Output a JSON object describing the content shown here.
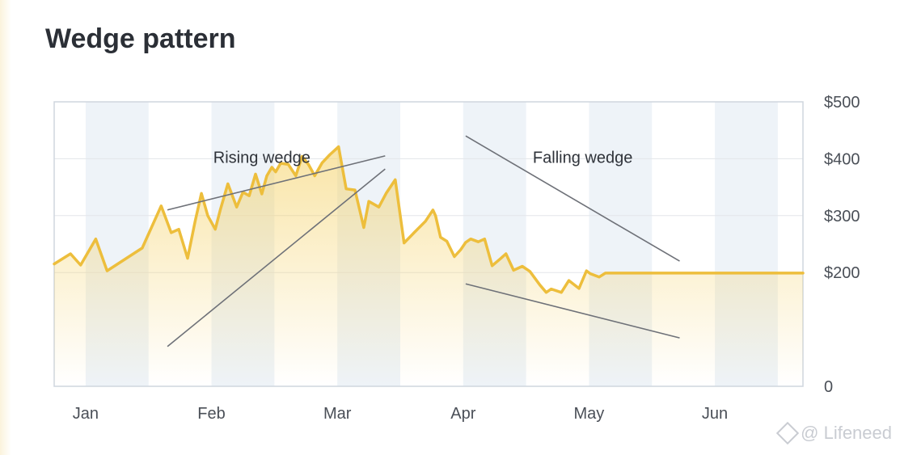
{
  "title": "Wedge pattern",
  "watermark": "@ Lifeneed",
  "colors": {
    "line": "#edbe3c",
    "fill_top": "#f4cf5e",
    "band": "#eef3f8",
    "trend": "#6e7178",
    "grid": "#e3e6ea",
    "axis_text": "#4a4f57",
    "border": "#cfd6de"
  },
  "chart_data": {
    "type": "area",
    "title": "Wedge pattern",
    "xlabel": "",
    "ylabel": "",
    "x_ticks": [
      "Jan",
      "Feb",
      "Mar",
      "Apr",
      "May",
      "Jun"
    ],
    "y_ticks": [
      "0",
      "$200",
      "$300",
      "$400",
      "$500"
    ],
    "y_tick_values": [
      0,
      200,
      300,
      400,
      500
    ],
    "ylim": [
      0,
      500
    ],
    "xlim": [
      0,
      5.95
    ],
    "grid": true,
    "legend": "none",
    "series": [
      {
        "values_x": [
          0.0,
          0.13,
          0.21,
          0.33,
          0.42,
          0.7,
          0.85,
          0.93,
          0.99,
          1.06,
          1.12,
          1.17,
          1.22,
          1.28,
          1.32,
          1.38,
          1.45,
          1.5,
          1.55,
          1.6,
          1.65,
          1.69,
          1.73,
          1.76,
          1.8,
          1.86,
          1.92,
          1.97,
          2.02,
          2.07,
          2.13,
          2.19,
          2.26,
          2.32,
          2.39,
          2.46,
          2.5,
          2.58,
          2.64,
          2.71,
          2.78,
          2.86,
          2.95,
          3.01,
          3.03,
          3.07,
          3.12,
          3.18,
          3.23,
          3.27,
          3.31,
          3.37,
          3.42,
          3.48,
          3.55,
          3.59,
          3.65,
          3.72,
          3.78,
          3.86,
          3.91,
          3.95,
          4.03,
          4.09,
          4.17,
          4.23,
          4.26,
          4.33,
          4.38,
          4.43,
          4.48,
          4.54,
          4.59,
          4.67,
          4.71,
          4.75,
          4.8,
          4.87,
          5.03,
          5.15,
          5.27,
          5.43,
          5.53,
          5.62,
          5.7,
          5.78,
          5.83,
          5.9,
          5.95
        ],
        "values": [
          215,
          233,
          213,
          259,
          203,
          243,
          317,
          270,
          276,
          225,
          290,
          339,
          300,
          276,
          310,
          356,
          315,
          341,
          335,
          373,
          338,
          370,
          385,
          377,
          392,
          390,
          370,
          404,
          390,
          370,
          393,
          407,
          421,
          347,
          345,
          279,
          325,
          315,
          340,
          363,
          252,
          270,
          290,
          310,
          300,
          262,
          255,
          228,
          240,
          253,
          259,
          254,
          259,
          212,
          225,
          233,
          204,
          211,
          202,
          178,
          165,
          171,
          165,
          186,
          172,
          203,
          198,
          192,
          199,
          199,
          199,
          199,
          199,
          199,
          199,
          199,
          199,
          199,
          199,
          199,
          199,
          199,
          199,
          199,
          199,
          199,
          199,
          199,
          199
        ]
      }
    ],
    "annotations": [
      {
        "text": "Rising wedge",
        "x": 1.65,
        "y": 400
      },
      {
        "text": "Falling wedge",
        "x": 4.2,
        "y": 400
      }
    ],
    "trendlines": [
      {
        "from": [
          0.9,
          310
        ],
        "to": [
          2.63,
          405
        ]
      },
      {
        "from": [
          0.9,
          70
        ],
        "to": [
          2.63,
          382
        ]
      },
      {
        "from": [
          3.27,
          440
        ],
        "to": [
          4.97,
          220
        ]
      },
      {
        "from": [
          3.27,
          180
        ],
        "to": [
          4.97,
          85
        ]
      }
    ],
    "shaded_bands": [
      [
        0.25,
        0.75
      ],
      [
        1.25,
        1.75
      ],
      [
        2.25,
        2.75
      ],
      [
        3.25,
        3.75
      ],
      [
        4.25,
        4.75
      ],
      [
        5.25,
        5.75
      ]
    ]
  }
}
